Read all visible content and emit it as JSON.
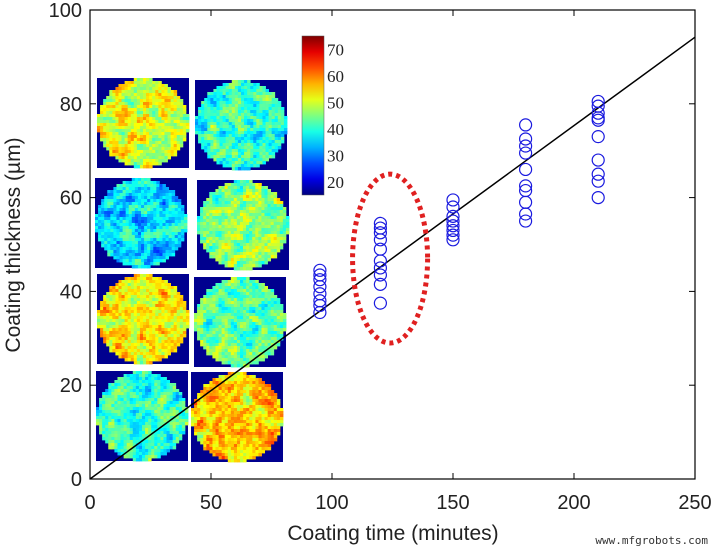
{
  "chart_data": {
    "type": "scatter",
    "xlabel": "Coating time (minutes)",
    "ylabel": "Coating thickness (µm)",
    "xlim": [
      0,
      250
    ],
    "ylim": [
      0,
      100
    ],
    "xticks": [
      0,
      50,
      100,
      150,
      200,
      250
    ],
    "yticks": [
      0,
      20,
      40,
      60,
      80,
      100
    ],
    "grid": false,
    "marker_color": "#1a1adf",
    "series": [
      {
        "x": 95,
        "values": [
          35.5,
          37,
          38,
          39.5,
          41,
          42.5,
          43.5,
          44.5
        ]
      },
      {
        "x": 120,
        "values": [
          37.5,
          41.5,
          43.5,
          45,
          46.5,
          49,
          51,
          52.5,
          53.5,
          54.5
        ]
      },
      {
        "x": 150,
        "values": [
          51,
          52,
          53,
          54,
          55,
          56,
          58,
          59.5
        ]
      },
      {
        "x": 180,
        "values": [
          55,
          56.5,
          59,
          61.5,
          62.5,
          66,
          69.5,
          71,
          72.5,
          75.5
        ]
      },
      {
        "x": 210,
        "values": [
          60,
          63.5,
          65,
          68,
          73,
          76.5,
          77,
          78,
          79.5,
          80.5
        ]
      }
    ],
    "fit_line": {
      "x": [
        0,
        250
      ],
      "y": [
        0,
        94.2
      ],
      "color": "#000000"
    },
    "highlight_ellipse": {
      "cx": 124,
      "cy": 47,
      "rx": 15.5,
      "ry": 18,
      "color": "#e02020",
      "style": "dotted"
    },
    "colorbar": {
      "ticks": [
        20,
        30,
        40,
        50,
        60,
        70
      ],
      "range": [
        15,
        75
      ],
      "colormap": "jet"
    },
    "inset_maps_mean_values": [
      [
        50,
        40
      ],
      [
        36,
        46
      ],
      [
        53,
        43
      ],
      [
        41,
        56
      ]
    ]
  },
  "watermark": "www.mfgrobots.com"
}
